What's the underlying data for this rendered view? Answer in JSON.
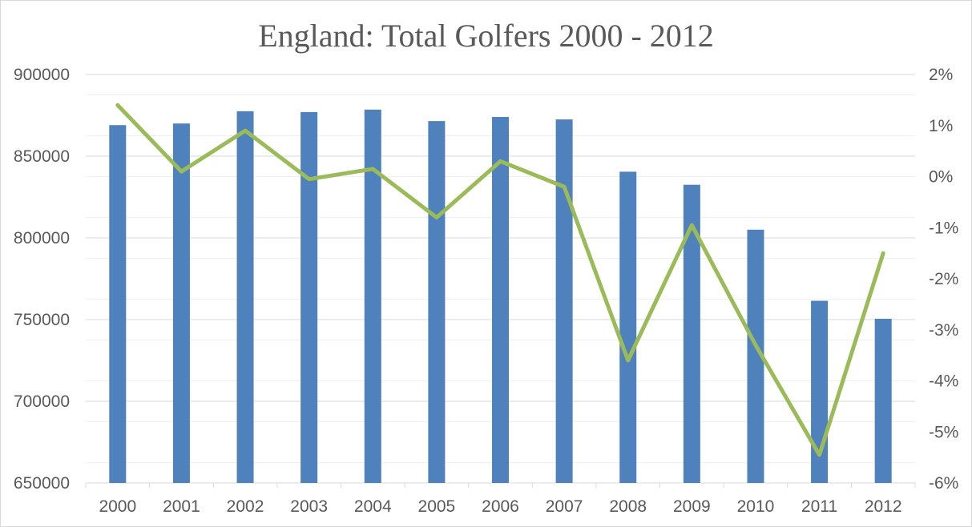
{
  "chart_data": {
    "type": "bar+line",
    "title": "England: Total Golfers 2000 - 2012",
    "categories": [
      "2000",
      "2001",
      "2002",
      "2003",
      "2004",
      "2005",
      "2006",
      "2007",
      "2008",
      "2009",
      "2010",
      "2011",
      "2012"
    ],
    "series": [
      {
        "kind": "bar",
        "axis": "left",
        "values": [
          869000,
          870000,
          877500,
          877000,
          878500,
          871500,
          874000,
          872500,
          840500,
          832500,
          805000,
          761500,
          750500
        ]
      },
      {
        "kind": "line",
        "axis": "right",
        "values": [
          1.4,
          0.1,
          0.9,
          -0.05,
          0.15,
          -0.8,
          0.3,
          -0.2,
          -3.6,
          -0.95,
          -3.3,
          -5.45,
          -1.5
        ]
      }
    ],
    "y_left": {
      "min": 650000,
      "max": 900000,
      "ticks": [
        "900000",
        "850000",
        "800000",
        "750000",
        "700000",
        "650000"
      ]
    },
    "y_right": {
      "min": -6,
      "max": 2,
      "ticks": [
        "2%",
        "1%",
        "0%",
        "-1%",
        "-2%",
        "-3%",
        "-4%",
        "-5%",
        "-6%"
      ]
    },
    "grid": true,
    "legend": "none",
    "colors": {
      "bar": "#4f81bd",
      "line": "#9bbb59"
    }
  }
}
